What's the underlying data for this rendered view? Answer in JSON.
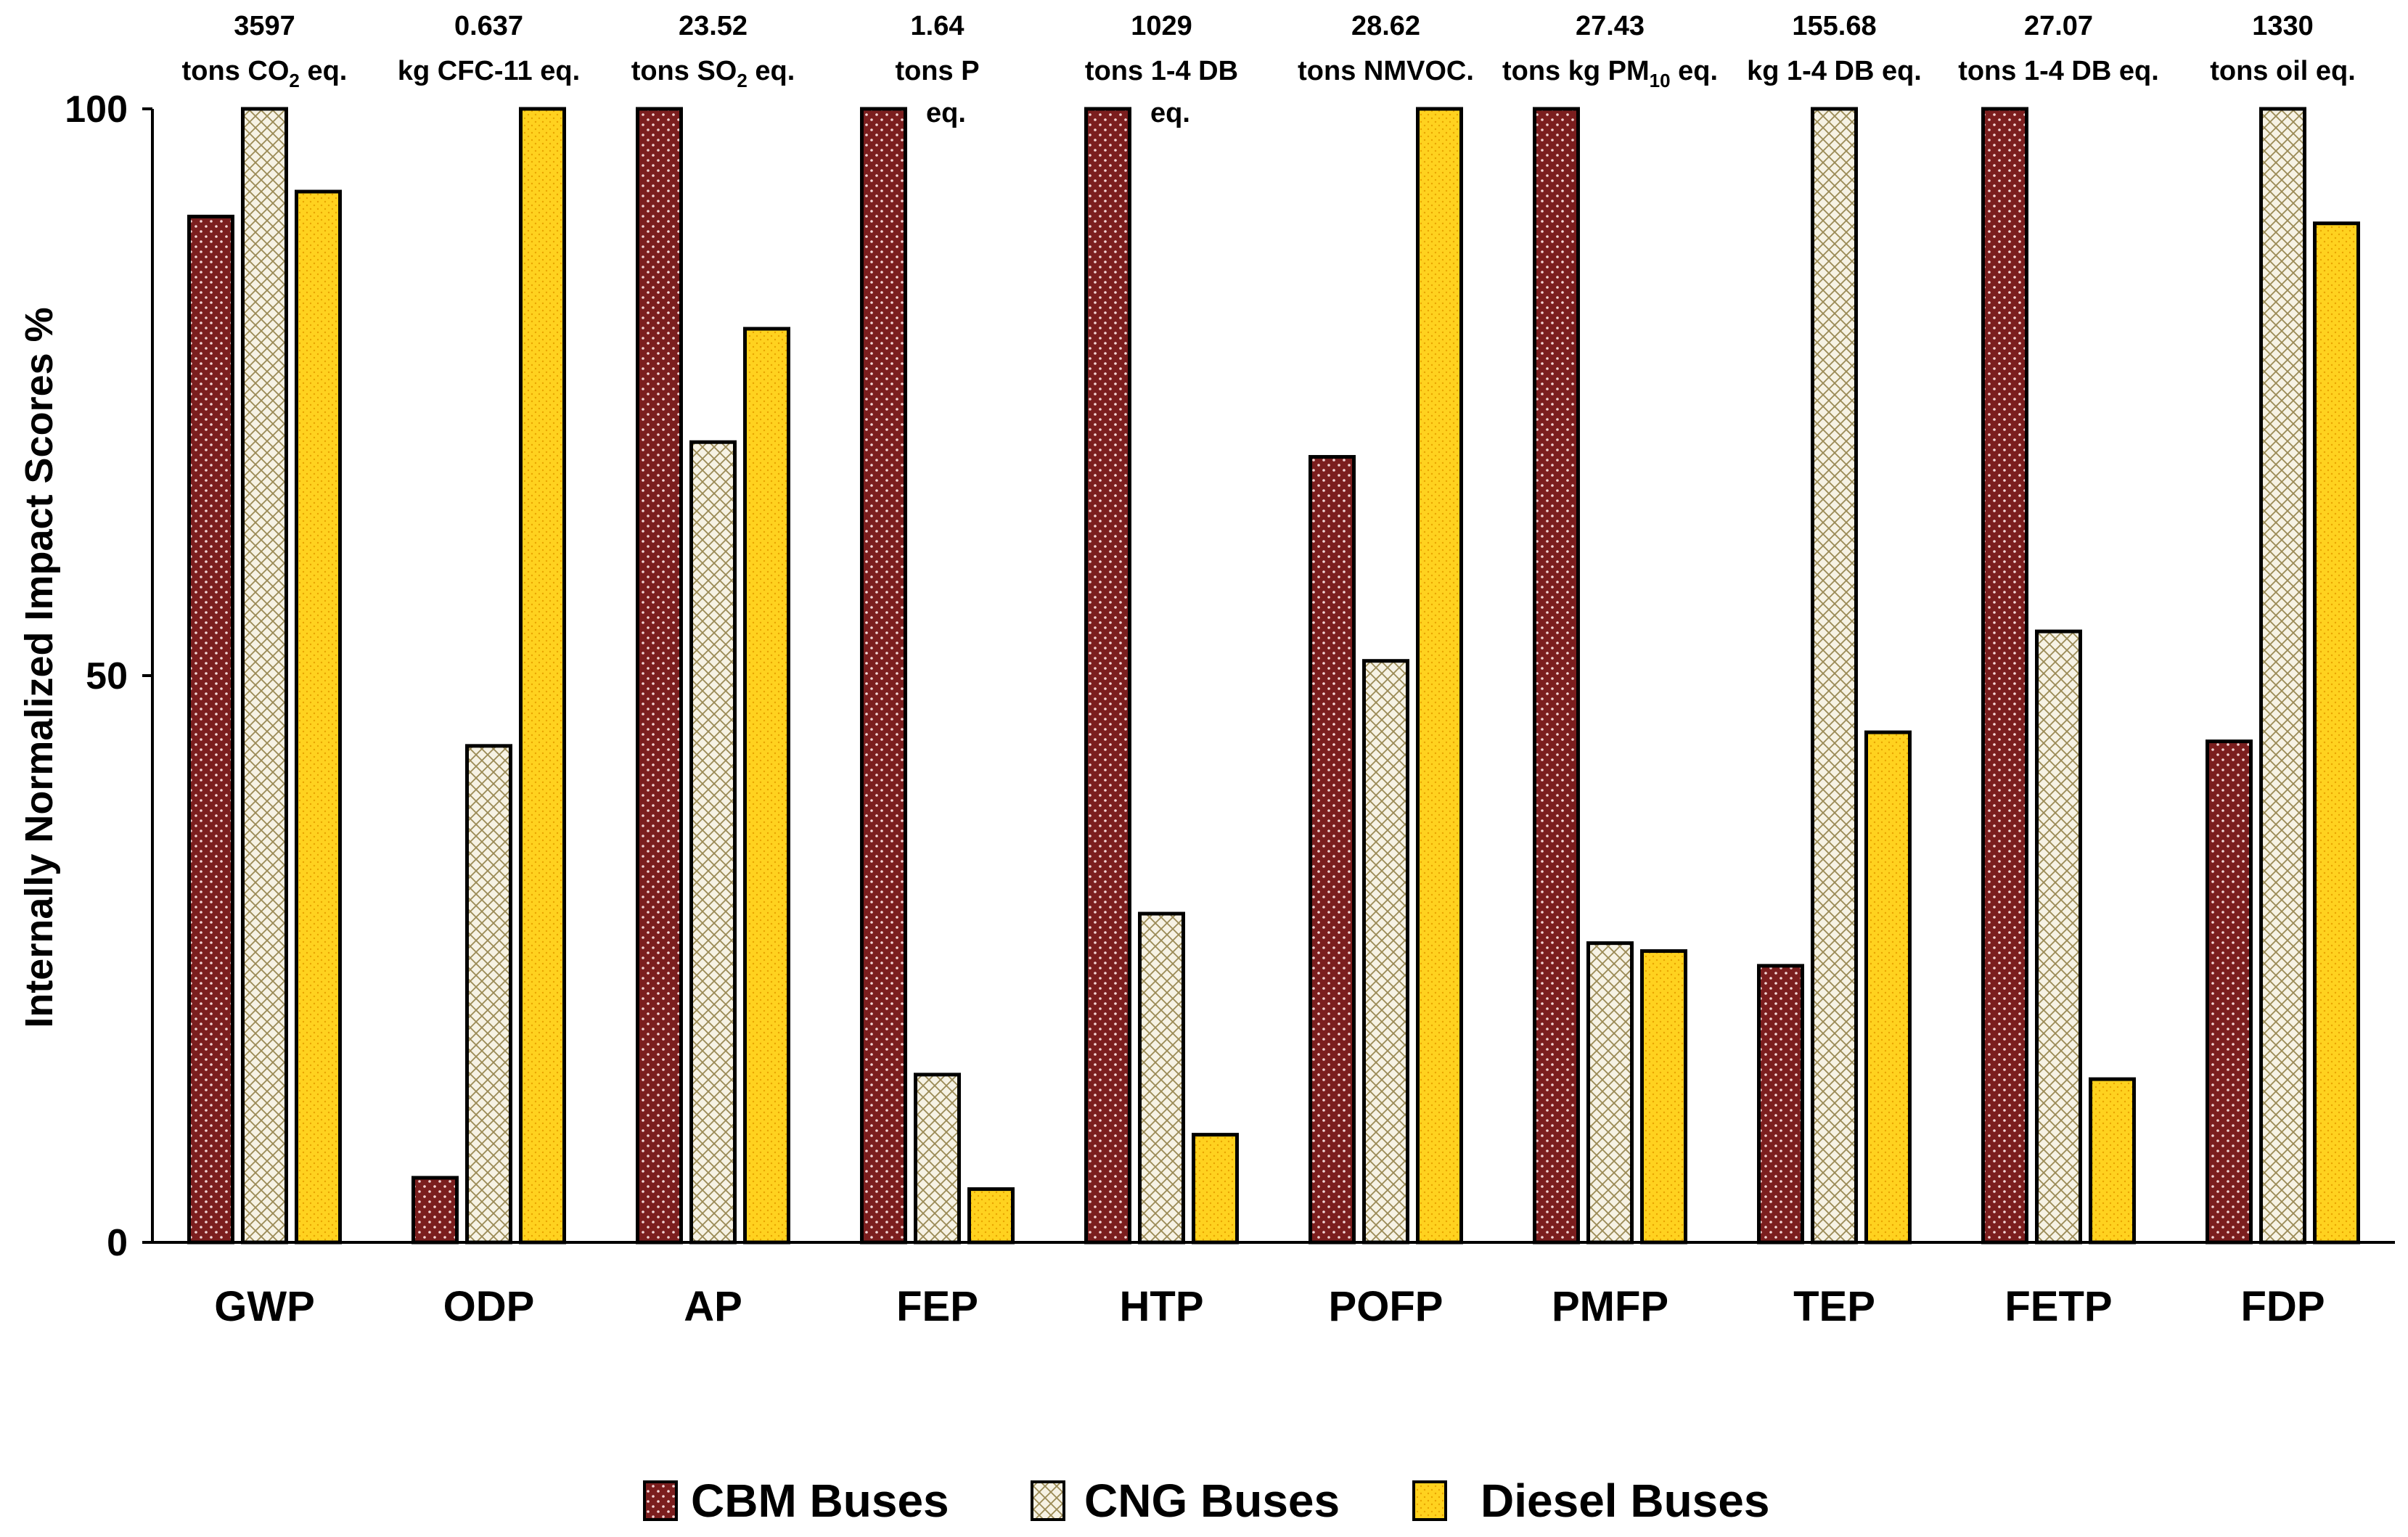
{
  "chart_data": {
    "type": "bar",
    "title": "",
    "xlabel": "",
    "ylabel": "Internally Normalized Impact Scores %",
    "ylim": [
      0,
      100
    ],
    "yticks": [
      "0",
      "50",
      "100"
    ],
    "grid": false,
    "legend_position": "bottom",
    "categories": [
      "GWP",
      "ODP",
      "AP",
      "FEP",
      "HTP",
      "POFP",
      "PMFP",
      "TEP",
      "FETP",
      "FDP"
    ],
    "series": [
      {
        "name": "CBM Buses",
        "color": "#7B1E1E",
        "pattern": "dots",
        "values": [
          90.5,
          5.7,
          100,
          100,
          100,
          69.3,
          100,
          24.4,
          100,
          44.2
        ]
      },
      {
        "name": "CNG Buses",
        "color": "#F3EEDC",
        "pattern": "crosshatch",
        "values": [
          100,
          43.8,
          70.6,
          14.8,
          29.0,
          51.3,
          26.4,
          100,
          53.9,
          100
        ]
      },
      {
        "name": "Diesel Buses",
        "color": "#FFD21F",
        "pattern": "fine-dots",
        "values": [
          92.7,
          100,
          80.6,
          4.7,
          9.5,
          100,
          25.7,
          45.0,
          14.4,
          89.9
        ]
      }
    ],
    "annotations": [
      {
        "category": "GWP",
        "value": "3597",
        "unit_parts": [
          "tons CO",
          "2",
          " eq."
        ]
      },
      {
        "category": "ODP",
        "value": "0.637",
        "unit_parts": [
          "kg CFC-11 eq.",
          "",
          ""
        ]
      },
      {
        "category": "AP",
        "value": "23.52",
        "unit_parts": [
          "tons SO",
          "2",
          " eq."
        ]
      },
      {
        "category": "FEP",
        "value": "1.64",
        "unit_parts": [
          "tons P",
          "",
          ""
        ],
        "unit_line2": "eq."
      },
      {
        "category": "HTP",
        "value": "1029",
        "unit_parts": [
          "tons 1-4 DB",
          "",
          ""
        ],
        "unit_line2": "eq."
      },
      {
        "category": "POFP",
        "value": "28.62",
        "unit_parts": [
          "tons  NMVOC.",
          "",
          ""
        ]
      },
      {
        "category": "PMFP",
        "value": "27.43",
        "unit_parts": [
          "tons kg PM",
          "10",
          " eq."
        ]
      },
      {
        "category": "TEP",
        "value": "155.68",
        "unit_parts": [
          "kg 1-4 DB eq.",
          "",
          ""
        ]
      },
      {
        "category": "FETP",
        "value": "27.07",
        "unit_parts": [
          "tons 1-4 DB eq.",
          "",
          ""
        ]
      },
      {
        "category": "FDP",
        "value": "1330",
        "unit_parts": [
          "tons oil eq.",
          "",
          ""
        ]
      }
    ]
  }
}
